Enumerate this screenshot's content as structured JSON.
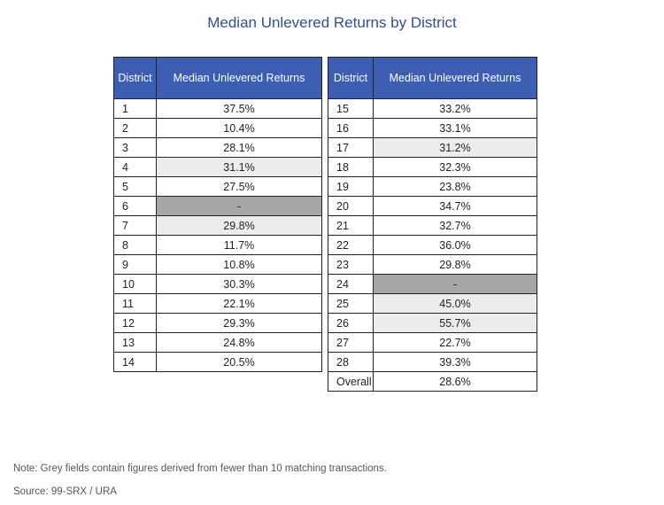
{
  "title": "Median Unlevered Returns by District",
  "headers": {
    "district": "District",
    "returns": "Median Unlevered Returns"
  },
  "left_rows": [
    {
      "district": "1",
      "value": "37.5%",
      "shade": ""
    },
    {
      "district": "2",
      "value": "10.4%",
      "shade": ""
    },
    {
      "district": "3",
      "value": "28.1%",
      "shade": ""
    },
    {
      "district": "4",
      "value": "31.1%",
      "shade": "hl"
    },
    {
      "district": "5",
      "value": "27.5%",
      "shade": ""
    },
    {
      "district": "6",
      "value": "-",
      "shade": "dk"
    },
    {
      "district": "7",
      "value": "29.8%",
      "shade": "hl"
    },
    {
      "district": "8",
      "value": "11.7%",
      "shade": ""
    },
    {
      "district": "9",
      "value": "10.8%",
      "shade": ""
    },
    {
      "district": "10",
      "value": "30.3%",
      "shade": ""
    },
    {
      "district": "11",
      "value": "22.1%",
      "shade": ""
    },
    {
      "district": "12",
      "value": "29.3%",
      "shade": ""
    },
    {
      "district": "13",
      "value": "24.8%",
      "shade": ""
    },
    {
      "district": "14",
      "value": "20.5%",
      "shade": ""
    }
  ],
  "right_rows": [
    {
      "district": "15",
      "value": "33.2%",
      "shade": ""
    },
    {
      "district": "16",
      "value": "33.1%",
      "shade": ""
    },
    {
      "district": "17",
      "value": "31.2%",
      "shade": "hl"
    },
    {
      "district": "18",
      "value": "32.3%",
      "shade": ""
    },
    {
      "district": "19",
      "value": "23.8%",
      "shade": ""
    },
    {
      "district": "20",
      "value": "34.7%",
      "shade": ""
    },
    {
      "district": "21",
      "value": "32.7%",
      "shade": ""
    },
    {
      "district": "22",
      "value": "36.0%",
      "shade": ""
    },
    {
      "district": "23",
      "value": "29.8%",
      "shade": ""
    },
    {
      "district": "24",
      "value": "-",
      "shade": "dk"
    },
    {
      "district": "25",
      "value": "45.0%",
      "shade": "hl"
    },
    {
      "district": "26",
      "value": "55.7%",
      "shade": "hl"
    },
    {
      "district": "27",
      "value": "22.7%",
      "shade": ""
    },
    {
      "district": "28",
      "value": "39.3%",
      "shade": ""
    },
    {
      "district": "Overall",
      "value": "28.6%",
      "shade": ""
    }
  ],
  "note": "Note: Grey fields contain figures derived from fewer than 10 matching transactions.",
  "source": "Source: 99-SRX / URA"
}
